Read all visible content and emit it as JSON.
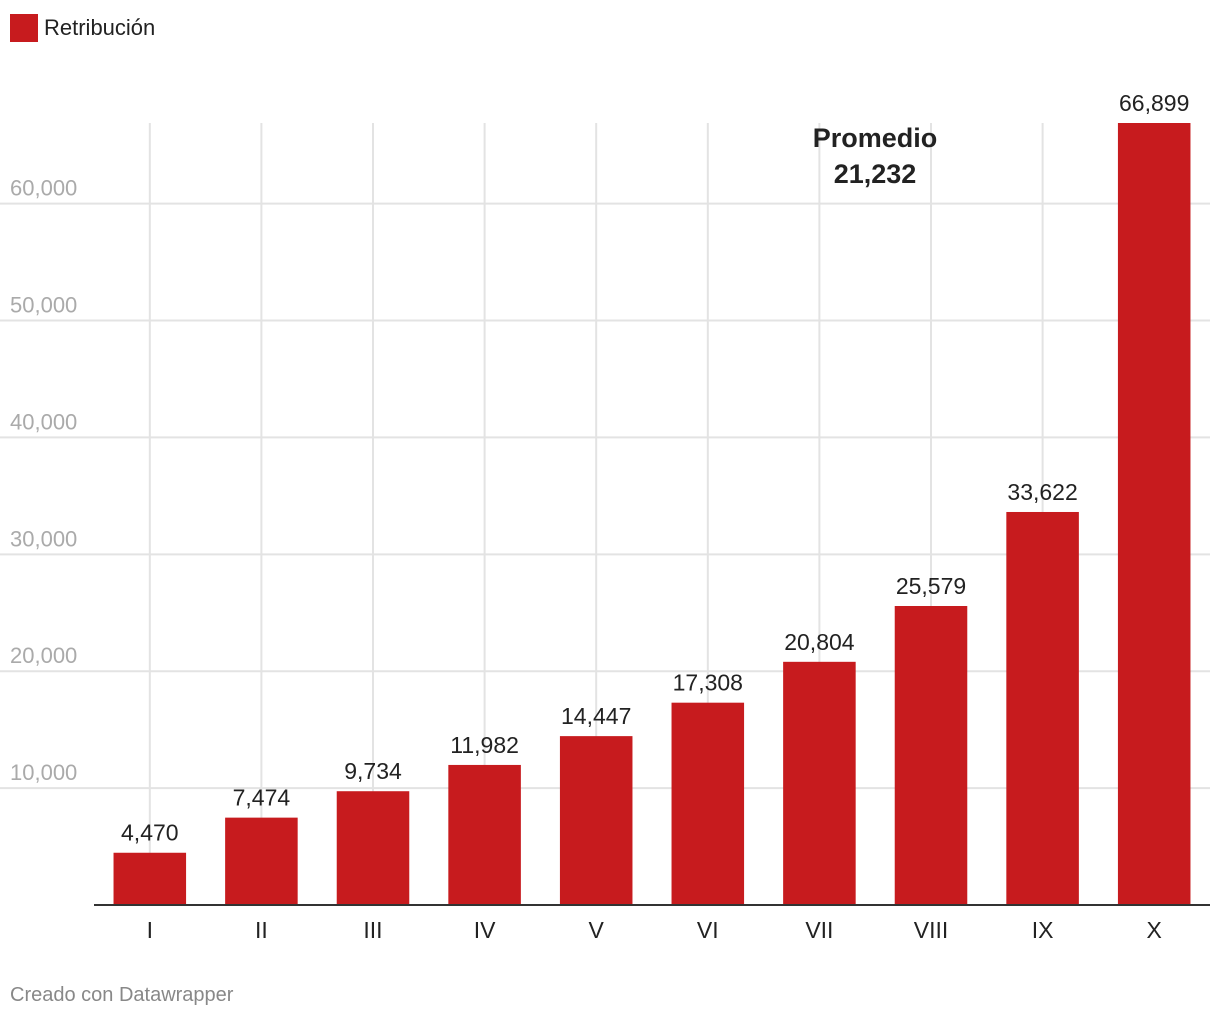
{
  "legend": {
    "label": "Retribución",
    "color": "#c71b1e"
  },
  "annotation": {
    "line1": "Promedio",
    "line2": "21,232"
  },
  "footer": {
    "credit": "Creado con Datawrapper"
  },
  "chart_data": {
    "type": "bar",
    "categories": [
      "I",
      "II",
      "III",
      "IV",
      "V",
      "VI",
      "VII",
      "VIII",
      "IX",
      "X"
    ],
    "series": [
      {
        "name": "Retribución",
        "color": "#c71b1e",
        "values": [
          4470,
          7474,
          9734,
          11982,
          14447,
          17308,
          20804,
          25579,
          33622,
          66899
        ]
      }
    ],
    "value_labels": [
      "4,470",
      "7,474",
      "9,734",
      "11,982",
      "14,447",
      "17,308",
      "20,804",
      "25,579",
      "33,622",
      "66,899"
    ],
    "yticks": [
      10000,
      20000,
      30000,
      40000,
      50000,
      60000
    ],
    "ytick_labels": [
      "10,000",
      "20,000",
      "30,000",
      "40,000",
      "50,000",
      "60,000"
    ],
    "ylim": [
      0,
      66899
    ],
    "grid": true,
    "legend_position": "top-left",
    "xlabel": "",
    "ylabel": "",
    "title": ""
  }
}
